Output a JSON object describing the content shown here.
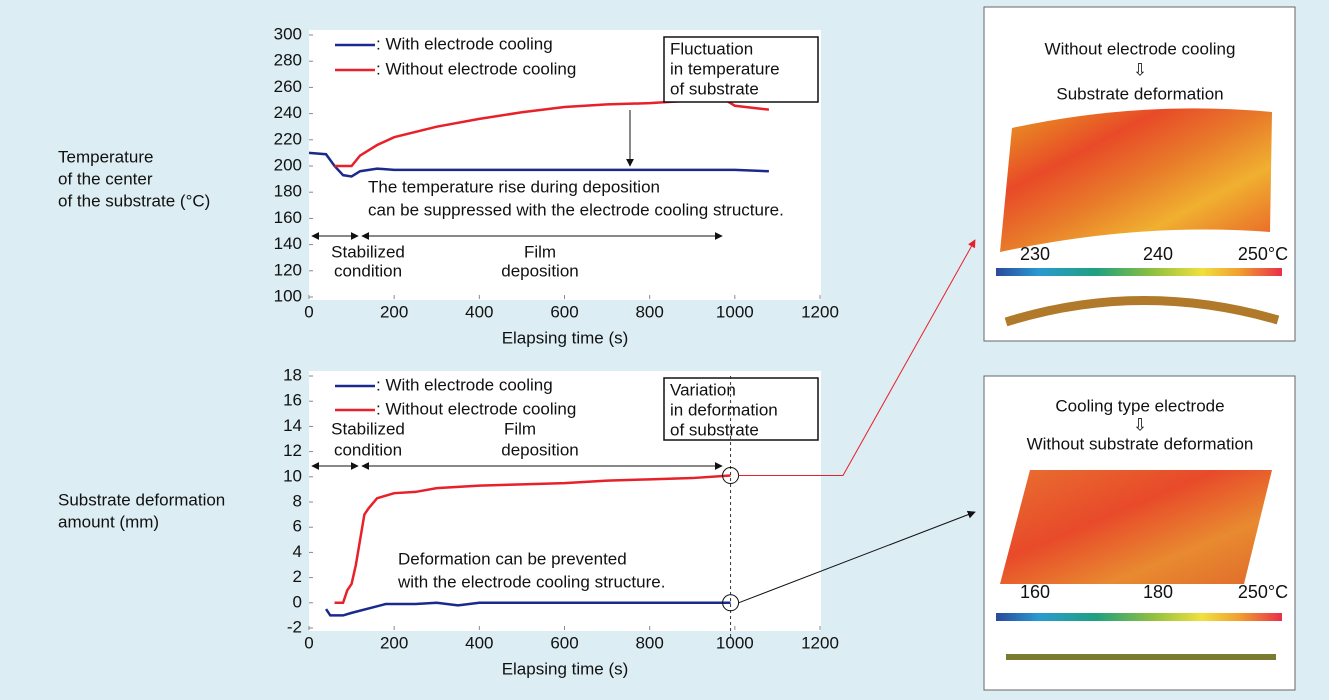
{
  "chart_data": [
    {
      "type": "line",
      "y_label": [
        "Temperature",
        "of the center",
        "of the substrate (°C)"
      ],
      "x_label": "Elapsing time (s)",
      "xlim": [
        0,
        1200
      ],
      "xticks": [
        0,
        200,
        400,
        600,
        800,
        1000,
        1200
      ],
      "ylim": [
        100,
        300
      ],
      "yticks": [
        100,
        120,
        140,
        160,
        180,
        200,
        220,
        240,
        260,
        280,
        300
      ],
      "series": [
        {
          "name": ": With electrode cooling",
          "color": "#1a2a8c",
          "x": [
            0,
            40,
            60,
            80,
            100,
            120,
            160,
            200,
            400,
            600,
            800,
            1000,
            1080
          ],
          "values": [
            210,
            209,
            200,
            193,
            192,
            196,
            198,
            197,
            197,
            197,
            197,
            197,
            196
          ]
        },
        {
          "name": ": Without electrode cooling",
          "color": "#e8202a",
          "x": [
            60,
            100,
            120,
            160,
            200,
            300,
            400,
            500,
            600,
            700,
            800,
            900,
            980,
            1000,
            1080
          ],
          "values": [
            200,
            200,
            208,
            216,
            222,
            230,
            236,
            241,
            245,
            247,
            248,
            250,
            250,
            246,
            243
          ]
        }
      ],
      "box_note": [
        "Fluctuation",
        "in temperature",
        "of substrate"
      ],
      "note": [
        "The temperature rise during deposition",
        "can be suppressed with the electrode cooling structure."
      ],
      "phases": [
        [
          "Stabilized",
          "condition"
        ],
        [
          "Film",
          "deposition"
        ]
      ]
    },
    {
      "type": "line",
      "y_label": [
        "Substrate deformation",
        "amount (mm)"
      ],
      "x_label": "Elapsing time (s)",
      "xlim": [
        0,
        1200
      ],
      "xticks": [
        0,
        200,
        400,
        600,
        800,
        1000,
        1200
      ],
      "ylim": [
        -2,
        18
      ],
      "yticks": [
        -2,
        0,
        2,
        4,
        6,
        8,
        10,
        12,
        14,
        16,
        18
      ],
      "series": [
        {
          "name": ": With electrode cooling",
          "color": "#1a2a8c",
          "x": [
            40,
            50,
            80,
            100,
            180,
            250,
            300,
            350,
            400,
            600,
            800,
            990
          ],
          "values": [
            -0.5,
            -1,
            -1,
            -0.8,
            -0.1,
            -0.1,
            0,
            -0.2,
            0,
            0,
            0,
            0
          ]
        },
        {
          "name": ": Without electrode cooling",
          "color": "#e8202a",
          "x": [
            60,
            80,
            90,
            100,
            110,
            120,
            130,
            140,
            160,
            200,
            250,
            300,
            400,
            500,
            600,
            700,
            800,
            900,
            990
          ],
          "values": [
            0,
            0,
            1,
            1.5,
            3,
            5,
            7,
            7.5,
            8.3,
            8.7,
            8.8,
            9.1,
            9.3,
            9.4,
            9.5,
            9.7,
            9.8,
            9.9,
            10.1
          ]
        }
      ],
      "box_note": [
        "Variation",
        "in deformation",
        "of substrate"
      ],
      "note": [
        "Deformation can be prevented",
        "with the electrode cooling structure."
      ],
      "phases": [
        [
          "Stabilized",
          "condition"
        ],
        [
          "Film",
          "deposition"
        ]
      ]
    }
  ],
  "panels": [
    {
      "title": "Without electrode cooling",
      "arrow": "⇩",
      "subtitle": "Substrate deformation",
      "scale_labels": [
        "230",
        "240",
        "250°C"
      ]
    },
    {
      "title": "Cooling type electrode",
      "arrow": "⇩",
      "subtitle": "Without substrate deformation",
      "scale_labels": [
        "160",
        "180",
        "250°C"
      ]
    }
  ]
}
